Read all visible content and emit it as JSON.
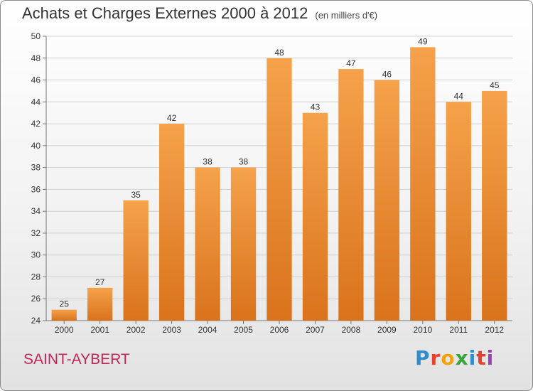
{
  "header": {
    "title": "Achats et Charges Externes 2000 à 2012",
    "subtitle": "(en milliers d'€)"
  },
  "footer": {
    "commune": "SAINT-AYBERT",
    "brand_letters": [
      {
        "ch": "P",
        "color": "#2f8ec9"
      },
      {
        "ch": "r",
        "color": "#e5412d"
      },
      {
        "ch": "o",
        "color": "#f0a30a"
      },
      {
        "ch": "x",
        "color": "#3aa53a"
      },
      {
        "ch": "i",
        "color": "#2f8ec9"
      },
      {
        "ch": "t",
        "color": "#e5412d"
      },
      {
        "ch": "i",
        "color": "#9c3fb0"
      }
    ]
  },
  "colors": {
    "bar_top": "#f5a24a",
    "bar_bottom": "#d9731c",
    "grid": "#cfcfcf"
  },
  "chart_data": {
    "type": "bar",
    "title": "Achats et Charges Externes 2000 à 2012",
    "subtitle": "(en milliers d'€)",
    "categories": [
      "2000",
      "2001",
      "2002",
      "2003",
      "2004",
      "2005",
      "2006",
      "2007",
      "2008",
      "2009",
      "2010",
      "2011",
      "2012"
    ],
    "values": [
      25,
      27,
      35,
      42,
      38,
      38,
      48,
      43,
      47,
      46,
      49,
      44,
      45
    ],
    "ylim": [
      24,
      50
    ],
    "yticks": [
      24,
      26,
      28,
      30,
      32,
      34,
      36,
      38,
      40,
      42,
      44,
      46,
      48,
      50
    ],
    "grid": true,
    "xlabel": "",
    "ylabel": ""
  }
}
